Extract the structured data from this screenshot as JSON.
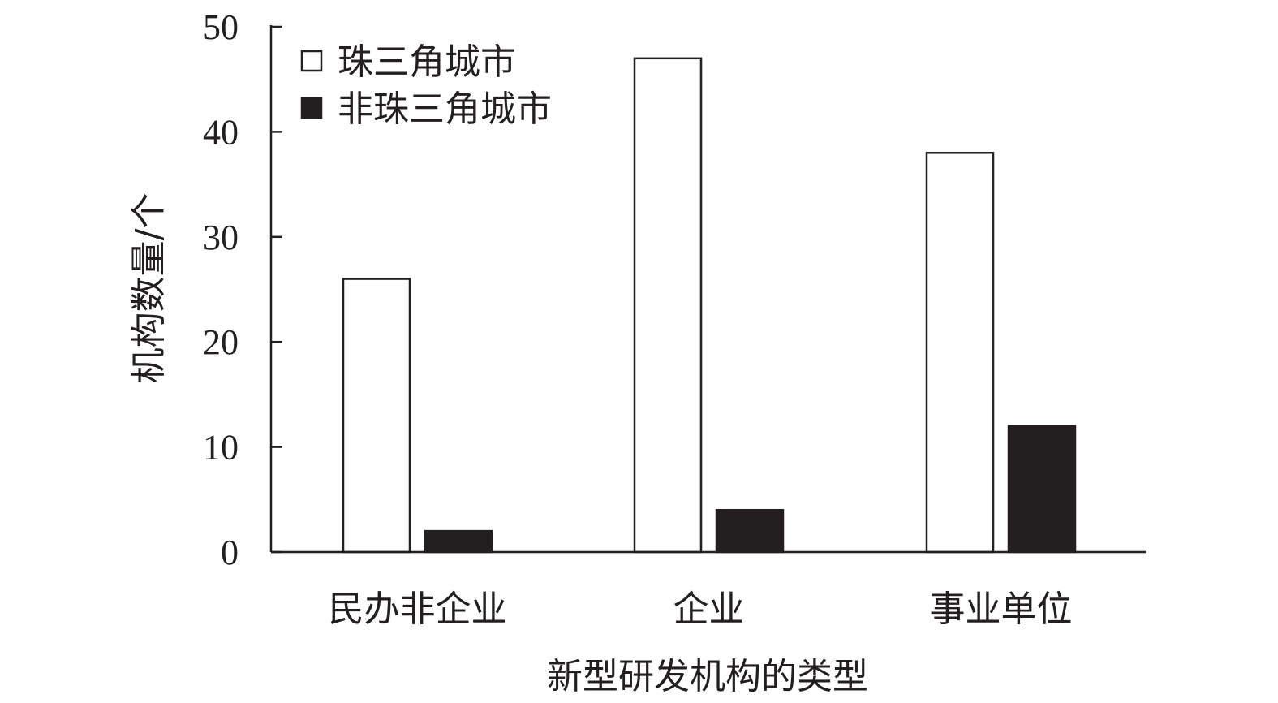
{
  "chart_data": {
    "type": "bar",
    "xlabel": "新型研发机构的类型",
    "ylabel": "机构数量/个",
    "categories": [
      "民办非企业",
      "企业",
      "事业单位"
    ],
    "series": [
      {
        "name": "珠三角城市",
        "values": [
          26,
          47,
          38
        ],
        "fill": "#ffffff"
      },
      {
        "name": "非珠三角城市",
        "values": [
          2,
          4,
          12
        ],
        "fill": "#231f20"
      }
    ],
    "ylim": [
      0,
      50
    ],
    "yticks": [
      0,
      10,
      20,
      30,
      40,
      50
    ],
    "grid": false,
    "legend": "top-left",
    "colors": {
      "ink": "#231f20",
      "background": "#ffffff"
    }
  }
}
